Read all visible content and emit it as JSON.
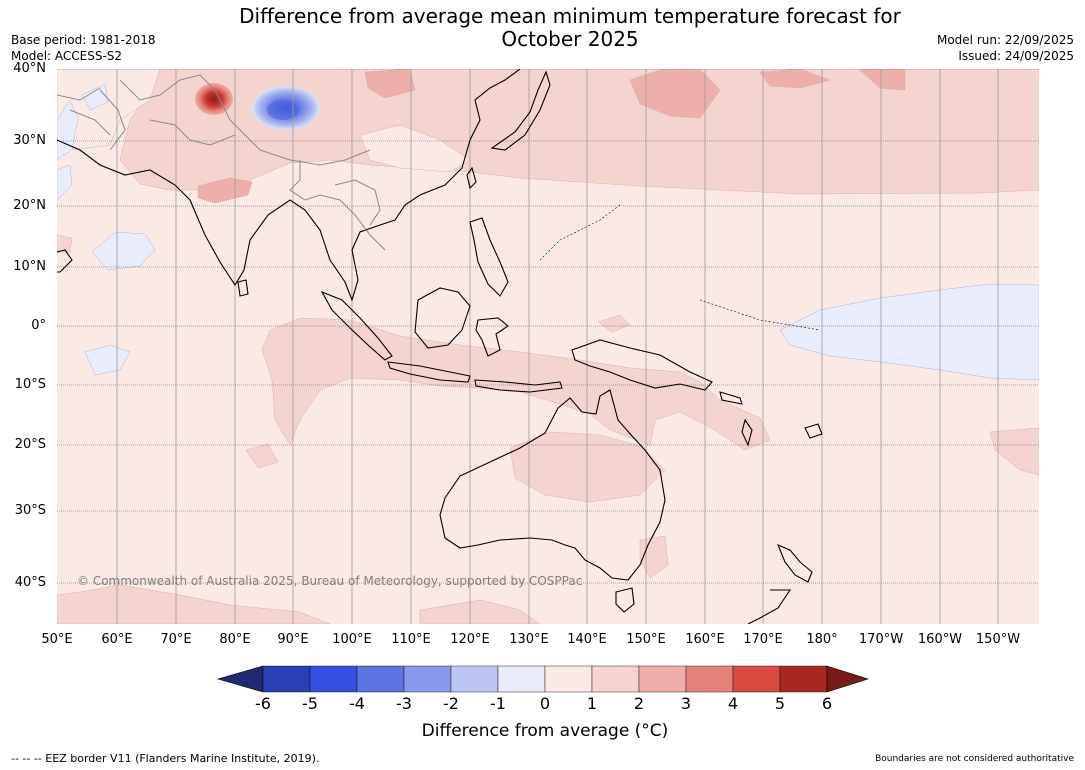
{
  "header": {
    "title_line1": "Difference from average mean minimum temperature forecast for",
    "title_line2": "October 2025",
    "base_period": "Base period: 1981-2018",
    "model": "Model: ACCESS-S2",
    "model_run": "Model run: 22/09/2025",
    "issued": "Issued: 24/09/2025"
  },
  "map": {
    "latitude_labels": [
      "40°N",
      "30°N",
      "20°N",
      "10°N",
      "0°",
      "10°S",
      "20°S",
      "30°S",
      "40°S"
    ],
    "longitude_labels": [
      "50°E",
      "60°E",
      "70°E",
      "80°E",
      "90°E",
      "100°E",
      "110°E",
      "120°E",
      "130°E",
      "140°E",
      "150°E",
      "160°E",
      "170°E",
      "180°",
      "170°W",
      "160°W",
      "150°W"
    ],
    "copyright": "© Commonwealth of Australia 2025, Bureau of Meteorology, supported by COSPPac",
    "colors": {
      "base_anomaly_0_1": "#fbe9e6",
      "anomaly_1_2": "#f5d3cf",
      "anomaly_2_3": "#eeaeaa",
      "anomaly_neg_1_0": "#e9ecfa",
      "anomaly_neg_2_neg_1": "#bcc4f1"
    }
  },
  "colorbar": {
    "ticks": [
      "-6",
      "-5",
      "-4",
      "-3",
      "-2",
      "-1",
      "0",
      "1",
      "2",
      "3",
      "4",
      "5",
      "6"
    ],
    "segments": [
      "#253494",
      "#2b3fb5",
      "#3350e0",
      "#5c73e3",
      "#8898ea",
      "#bdc5f2",
      "#e8ebfa",
      "#fbe9e6",
      "#f5d3cf",
      "#eeaeaa",
      "#e6817a",
      "#d94a3f",
      "#a8281f"
    ],
    "under_color": "#1f2a70",
    "over_color": "#7a1a14",
    "label": "Difference from average (°C)"
  },
  "footer": {
    "eez_note": "--  --  -- EEZ border V11 (Flanders Marine Institute, 2019).",
    "boundaries_note": "Boundaries are not considered authoritative"
  }
}
